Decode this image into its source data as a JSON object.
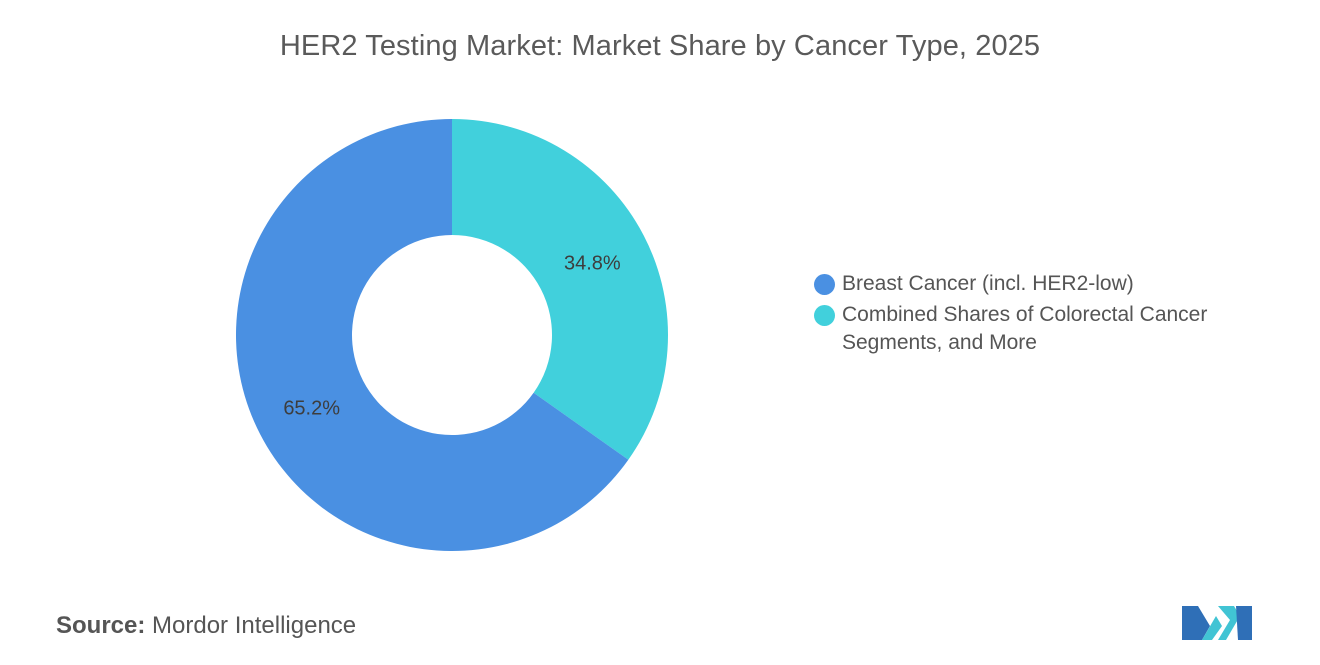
{
  "chart_data": {
    "type": "pie",
    "title": "HER2 Testing Market: Market Share by Cancer Type, 2025",
    "series": [
      {
        "name": "Breast Cancer (incl. HER2-low)",
        "value": 65.2,
        "label": "65.2%",
        "color": "#4A90E2"
      },
      {
        "name": "Combined Shares of Colorectal Cancer Segments, and More",
        "value": 34.8,
        "label": "34.8%",
        "color": "#41D0DC"
      }
    ],
    "legend_position": "right"
  },
  "source": {
    "label": "Source:",
    "text": "Mordor Intelligence"
  },
  "colors": {
    "logo_primary": "#2F6FB7",
    "logo_accent": "#41C4D4"
  }
}
